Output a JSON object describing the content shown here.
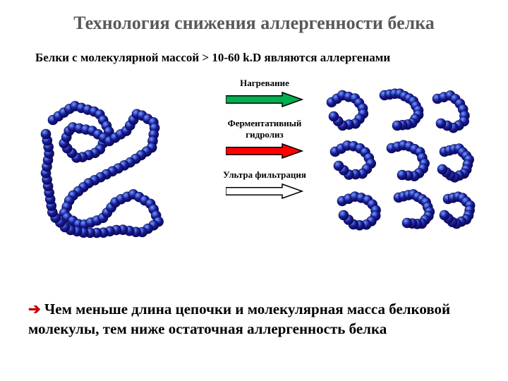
{
  "title": "Технология снижения аллергенности белка",
  "subtitle": "Белки с молекулярной массой > 10-60 k.D являются аллергенами",
  "steps": [
    {
      "label": "Нагревание",
      "arrow_fill": "#00b050",
      "arrow_stroke": "#000000"
    },
    {
      "label": "Ферментативный гидролиз",
      "arrow_fill": "#ff0000",
      "arrow_stroke": "#000000"
    },
    {
      "label": "Ультра фильтрация",
      "arrow_fill": "#ffffff",
      "arrow_stroke": "#000000"
    }
  ],
  "conclusion_arrow": "➔",
  "conclusion": "Чем меньше длина цепочки и молекулярная масса белковой молекулы, тем ниже остаточная аллергенность белка",
  "protein": {
    "sphere_color": "#1a1a9a",
    "sphere_highlight": "#6ea0ff",
    "sphere_stroke": "#0a0a50",
    "sphere_radius": 7
  }
}
